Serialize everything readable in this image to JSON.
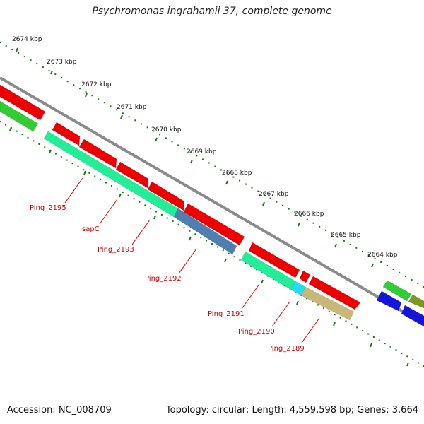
{
  "title": "Psychromonas ingrahamii 37, complete genome",
  "accession": "Accession: NC_008709",
  "topology": "Topology: circular; Length: 4,559,598 bp; Genes: 3,664",
  "colors": {
    "backbone": "#8a8a8a",
    "tick": "#1a7a1a",
    "label_line": "#dd0000",
    "red": "#ee0000",
    "green": "#33cc33",
    "aqua": "#22ee99",
    "steel": "#4f7fb0",
    "cyan": "#22ddff",
    "khaki": "#c8b878",
    "blue": "#1414dd",
    "olive": "#7a9a22"
  },
  "kbp_labels": [
    "2674 kbp",
    "2673 kbp",
    "2672 kbp",
    "2671 kbp",
    "2670 kbp",
    "2669 kbp",
    "2668 kbp",
    "2667 kbp",
    "2666 kbp",
    "2665 kbp",
    "2664 kbp"
  ],
  "gene_labels": [
    "Ping_2195",
    "sapC",
    "Ping_2193",
    "Ping_2192",
    "Ping_2191",
    "Ping_2190",
    "Ping_2189"
  ]
}
